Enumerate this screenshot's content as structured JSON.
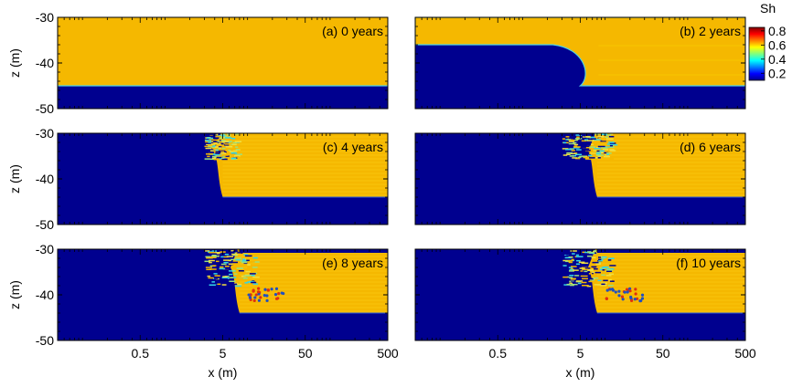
{
  "chart_data": {
    "type": "heatmap",
    "colorbar": {
      "title": "Sh",
      "ticks": [
        "0.8",
        "0.6",
        "0.4",
        "0.2"
      ],
      "range": [
        0.1,
        0.85
      ],
      "colormap": "jet"
    },
    "xlabel": "x (m)",
    "ylabel": "z (m)",
    "x_scale": "log",
    "x_ticks": [
      "0.5",
      "5",
      "50",
      "500"
    ],
    "xlim": [
      0.05,
      500
    ],
    "y_ticks": [
      "-30",
      "-40",
      "-50"
    ],
    "ylim": [
      -50,
      -30
    ],
    "panels": [
      {
        "label": "(a) 0 years",
        "state": "initial",
        "front_x": null,
        "hydrate_base_z": -45
      },
      {
        "label": "(b) 2 years",
        "state": "early",
        "front_x": 5,
        "hydrate_base_z": -45
      },
      {
        "label": "(c) 4 years",
        "state": "dissoc",
        "front_x": 5,
        "hydrate_base_z": -44
      },
      {
        "label": "(d) 6 years",
        "state": "dissoc",
        "front_x": 8,
        "hydrate_base_z": -44
      },
      {
        "label": "(e) 8 years",
        "state": "late",
        "front_x": 8,
        "hydrate_base_z": -44
      },
      {
        "label": "(f) 10 years",
        "state": "late",
        "front_x": 8,
        "hydrate_base_z": -44
      }
    ],
    "colors": {
      "low": "#00008f",
      "high": "#f5b800",
      "frame": "#000000"
    }
  }
}
